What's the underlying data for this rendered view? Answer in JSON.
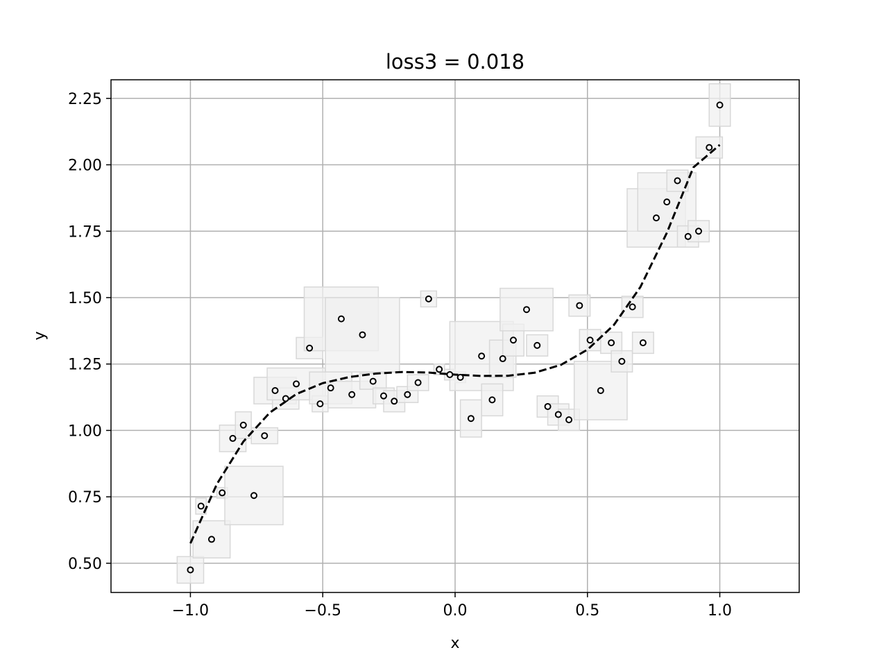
{
  "chart_data": {
    "type": "scatter",
    "title": "loss3 = 0.018",
    "xlabel": "x",
    "ylabel": "y",
    "xlim": [
      -1.3,
      1.3
    ],
    "ylim": [
      0.39,
      2.32
    ],
    "grid": true,
    "xticks": [
      -1.0,
      -0.5,
      0.0,
      0.5,
      1.0
    ],
    "xtick_labels": [
      "−1.0",
      "−0.5",
      "0.0",
      "0.5",
      "1.0"
    ],
    "yticks": [
      0.5,
      0.75,
      1.0,
      1.25,
      1.5,
      1.75,
      2.0,
      2.25
    ],
    "ytick_labels": [
      "0.50",
      "0.75",
      "1.00",
      "1.25",
      "1.50",
      "1.75",
      "2.00",
      "2.25"
    ],
    "points": {
      "x": [
        -1.0,
        -0.96,
        -0.92,
        -0.88,
        -0.84,
        -0.8,
        -0.76,
        -0.72,
        -0.68,
        -0.64,
        -0.6,
        -0.55,
        -0.51,
        -0.47,
        -0.43,
        -0.39,
        -0.35,
        -0.31,
        -0.27,
        -0.23,
        -0.18,
        -0.14,
        -0.1,
        -0.06,
        -0.02,
        0.02,
        0.06,
        0.1,
        0.14,
        0.18,
        0.22,
        0.27,
        0.31,
        0.35,
        0.39,
        0.43,
        0.47,
        0.51,
        0.55,
        0.59,
        0.63,
        0.67,
        0.71,
        0.76,
        0.8,
        0.84,
        0.88,
        0.92,
        0.96,
        1.0
      ],
      "y": [
        0.475,
        0.715,
        0.59,
        0.765,
        0.97,
        1.02,
        0.755,
        0.98,
        1.15,
        1.12,
        1.175,
        1.31,
        1.1,
        1.16,
        1.42,
        1.135,
        1.36,
        1.185,
        1.13,
        1.11,
        1.135,
        1.18,
        1.495,
        1.23,
        1.21,
        1.2,
        1.045,
        1.28,
        1.115,
        1.27,
        1.34,
        1.455,
        1.32,
        1.09,
        1.06,
        1.04,
        1.47,
        1.34,
        1.15,
        1.33,
        1.26,
        1.465,
        1.33,
        1.8,
        1.86,
        1.94,
        1.73,
        1.75,
        2.065,
        2.225
      ]
    },
    "fit_curve": {
      "style": "dashed",
      "color": "#000000",
      "x": [
        -1.0,
        -0.9,
        -0.8,
        -0.7,
        -0.6,
        -0.5,
        -0.4,
        -0.3,
        -0.2,
        -0.1,
        0.0,
        0.1,
        0.2,
        0.3,
        0.4,
        0.5,
        0.6,
        0.7,
        0.8,
        0.9,
        1.0
      ],
      "y": [
        0.575,
        0.798,
        0.958,
        1.067,
        1.137,
        1.178,
        1.201,
        1.214,
        1.22,
        1.218,
        1.21,
        1.205,
        1.206,
        1.217,
        1.247,
        1.304,
        1.397,
        1.54,
        1.744,
        1.99,
        2.075
      ]
    },
    "uncertainty_boxes": {
      "color": "#f0f0f0",
      "edge_color": "#d8d8d8",
      "x": [
        -1.0,
        -0.96,
        -0.92,
        -0.88,
        -0.84,
        -0.8,
        -0.76,
        -0.72,
        -0.68,
        -0.64,
        -0.6,
        -0.55,
        -0.51,
        -0.47,
        -0.43,
        -0.39,
        -0.35,
        -0.31,
        -0.27,
        -0.23,
        -0.18,
        -0.14,
        -0.1,
        -0.06,
        -0.02,
        0.02,
        0.06,
        0.1,
        0.14,
        0.18,
        0.22,
        0.27,
        0.31,
        0.35,
        0.39,
        0.43,
        0.47,
        0.51,
        0.55,
        0.59,
        0.63,
        0.67,
        0.71,
        0.76,
        0.8,
        0.84,
        0.88,
        0.92,
        0.96,
        1.0
      ],
      "y": [
        0.475,
        0.715,
        0.59,
        0.765,
        0.97,
        1.02,
        0.755,
        0.98,
        1.15,
        1.12,
        1.175,
        1.31,
        1.1,
        1.16,
        1.42,
        1.135,
        1.36,
        1.185,
        1.13,
        1.11,
        1.135,
        1.18,
        1.495,
        1.23,
        1.21,
        1.2,
        1.045,
        1.28,
        1.115,
        1.27,
        1.34,
        1.455,
        1.32,
        1.09,
        1.06,
        1.04,
        1.47,
        1.34,
        1.15,
        1.33,
        1.26,
        1.465,
        1.33,
        1.8,
        1.86,
        1.94,
        1.73,
        1.75,
        2.065,
        2.225
      ],
      "half_widths": [
        0.05,
        0.02,
        0.07,
        0.02,
        0.05,
        0.03,
        0.11,
        0.05,
        0.08,
        0.05,
        0.11,
        0.05,
        0.03,
        0.08,
        0.14,
        0.09,
        0.14,
        0.05,
        0.04,
        0.04,
        0.04,
        0.04,
        0.03,
        0.02,
        0.02,
        0.02,
        0.04,
        0.12,
        0.04,
        0.05,
        0.04,
        0.1,
        0.04,
        0.04,
        0.04,
        0.04,
        0.04,
        0.04,
        0.1,
        0.04,
        0.04,
        0.04,
        0.04,
        0.11,
        0.11,
        0.04,
        0.04,
        0.04,
        0.05,
        0.04
      ],
      "half_heights": [
        0.05,
        0.03,
        0.07,
        0.02,
        0.05,
        0.05,
        0.11,
        0.03,
        0.05,
        0.04,
        0.06,
        0.04,
        0.03,
        0.06,
        0.12,
        0.05,
        0.14,
        0.03,
        0.03,
        0.04,
        0.03,
        0.03,
        0.03,
        0.02,
        0.02,
        0.02,
        0.07,
        0.13,
        0.06,
        0.07,
        0.06,
        0.08,
        0.04,
        0.04,
        0.04,
        0.04,
        0.04,
        0.04,
        0.11,
        0.04,
        0.04,
        0.04,
        0.04,
        0.11,
        0.11,
        0.04,
        0.04,
        0.04,
        0.04,
        0.08
      ]
    }
  }
}
